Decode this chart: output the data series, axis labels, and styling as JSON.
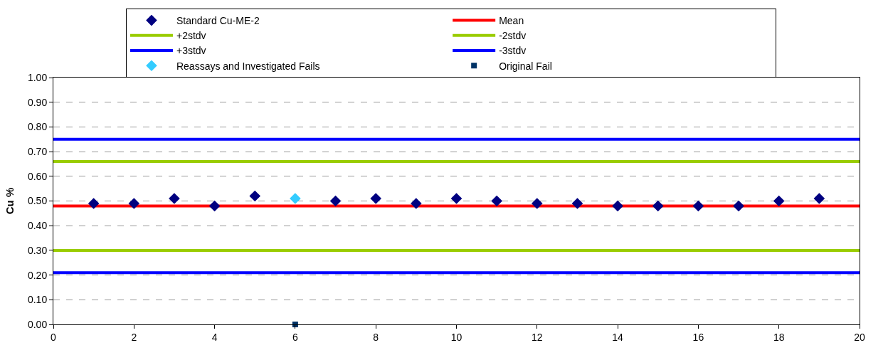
{
  "chart_data": {
    "type": "scatter",
    "ylabel": "Cu %",
    "xlim": [
      0,
      20
    ],
    "xticks": [
      0,
      2,
      4,
      6,
      8,
      10,
      12,
      14,
      16,
      18,
      20
    ],
    "ylim": [
      0,
      1
    ],
    "yticks": [
      {
        "value": 0,
        "label": "0.00"
      },
      {
        "value": 0.1,
        "label": "0.10"
      },
      {
        "value": 0.2,
        "label": "0.20"
      },
      {
        "value": 0.3,
        "label": "0.30"
      },
      {
        "value": 0.4,
        "label": "0.40"
      },
      {
        "value": 0.5,
        "label": "0.50"
      },
      {
        "value": 0.6,
        "label": "0.60"
      },
      {
        "value": 0.7,
        "label": "0.70"
      },
      {
        "value": 0.8,
        "label": "0.80"
      },
      {
        "value": 0.9,
        "label": "0.90"
      },
      {
        "value": 1,
        "label": "1.00"
      }
    ],
    "grid": "y",
    "legend": "top",
    "series": [
      {
        "name": "Standard Cu-ME-2",
        "marker": "diamond",
        "color": "#000080",
        "x": [
          1,
          2,
          3,
          4,
          5,
          7,
          8,
          9,
          10,
          11,
          12,
          13,
          14,
          15,
          16,
          17,
          18,
          19
        ],
        "values": [
          0.49,
          0.49,
          0.51,
          0.48,
          0.52,
          0.5,
          0.51,
          0.49,
          0.51,
          0.5,
          0.49,
          0.49,
          0.48,
          0.48,
          0.48,
          0.48,
          0.5,
          0.51
        ]
      },
      {
        "name": "Mean",
        "type": "line",
        "marker": "none",
        "color": "#ff0000",
        "x": [
          0,
          20
        ],
        "values": [
          0.48,
          0.48
        ]
      },
      {
        "name": "+2stdv",
        "type": "line",
        "marker": "none",
        "color": "#99cc00",
        "x": [
          0,
          20
        ],
        "values": [
          0.66,
          0.66
        ]
      },
      {
        "name": "-2stdv",
        "type": "line",
        "marker": "none",
        "color": "#99cc00",
        "x": [
          0,
          20
        ],
        "values": [
          0.3,
          0.3
        ]
      },
      {
        "name": "+3stdv",
        "type": "line",
        "marker": "none",
        "color": "#0000ff",
        "x": [
          0,
          20
        ],
        "values": [
          0.75,
          0.75
        ]
      },
      {
        "name": "-3stdv",
        "type": "line",
        "marker": "none",
        "color": "#0000ff",
        "x": [
          0,
          20
        ],
        "values": [
          0.21,
          0.21
        ]
      },
      {
        "name": "Reassays and Investigated Fails",
        "marker": "diamond",
        "color": "#33ccff",
        "x": [
          6
        ],
        "values": [
          0.51
        ]
      },
      {
        "name": "Original Fail",
        "marker": "square",
        "color": "#003366",
        "x": [
          6
        ],
        "values": [
          0
        ]
      }
    ]
  }
}
